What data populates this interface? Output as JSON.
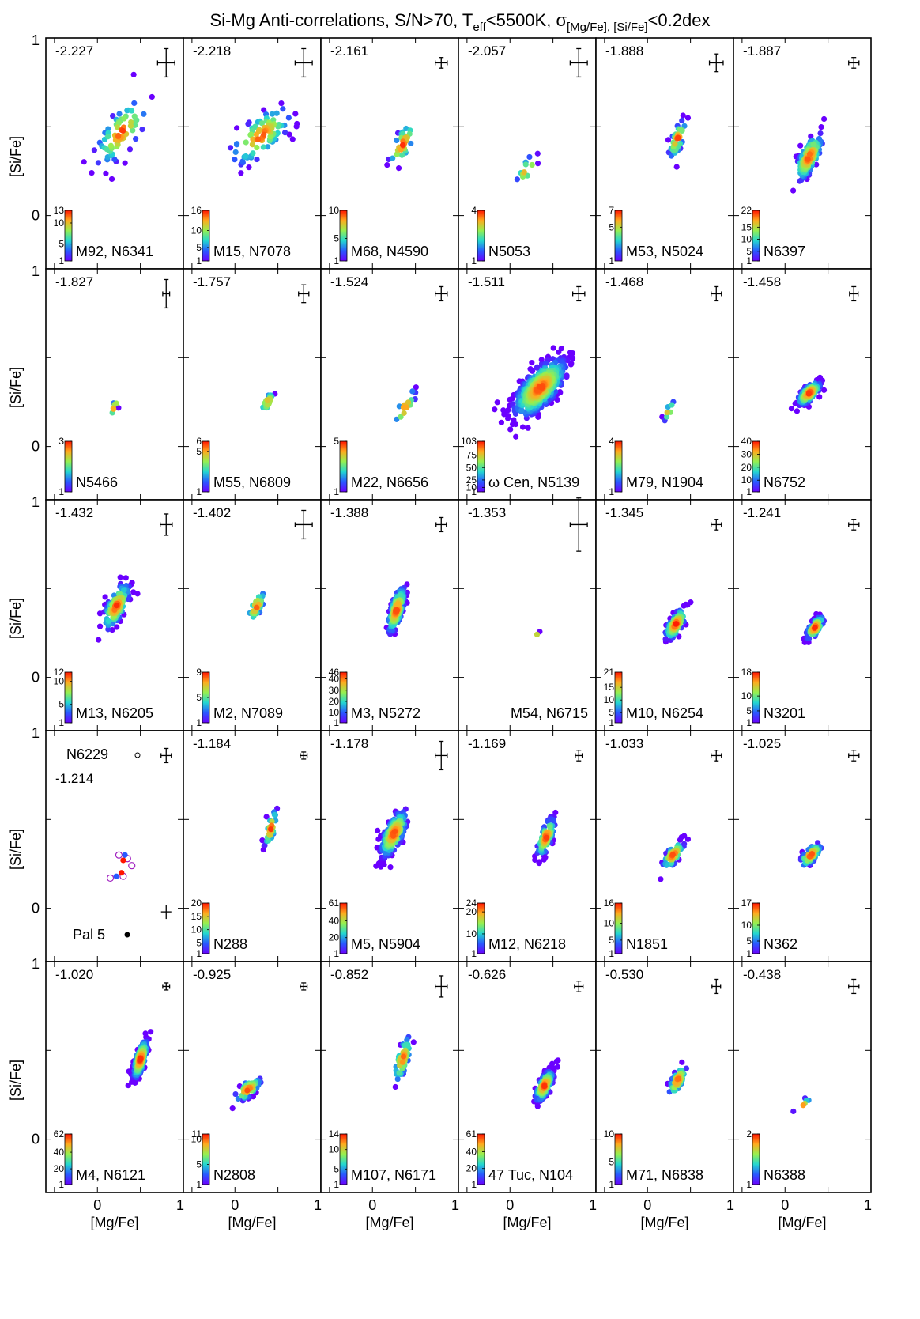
{
  "figure": {
    "title_main": "Si-Mg Anti-correlations, S/N>70, T",
    "title_sub1": "eff",
    "title_mid": "<5500K, σ",
    "title_sub2": "[Mg/Fe], [Si/Fe]",
    "title_end": "<0.2dex",
    "xlabel": "[Mg/Fe]",
    "ylabel": "[Si/Fe]"
  },
  "chart_data": {
    "type": "scatter",
    "layout": "6 columns x 5 rows of small-multiple panels",
    "xlim": [
      -0.6,
      1.0
    ],
    "ylim": [
      -0.3,
      1.0
    ],
    "x_ticks": [
      0,
      1
    ],
    "y_ticks": [
      0,
      1
    ],
    "colormap": "rainbow (violet = low density, red = high density)",
    "colors": {
      "low": "#6a00ff",
      "mid": "#24d7d0",
      "high": "#ff1a00"
    },
    "panels": [
      {
        "metallicity": "-2.227",
        "name": "M92, N6341",
        "cbar_ticks": [
          "13",
          "10",
          "5",
          "1"
        ],
        "cbar_max": 13,
        "center": [
          0.28,
          0.47
        ],
        "spread": [
          0.3,
          0.17
        ],
        "n": 70,
        "err": [
          0.1,
          0.08
        ],
        "seed": 11
      },
      {
        "metallicity": "-2.218",
        "name": "M15, N7078",
        "cbar_ticks": [
          "16",
          "10",
          "5",
          "1"
        ],
        "cbar_max": 16,
        "center": [
          0.3,
          0.45
        ],
        "spread": [
          0.35,
          0.15
        ],
        "n": 90,
        "err": [
          0.1,
          0.08
        ],
        "seed": 12
      },
      {
        "metallicity": "-2.161",
        "name": "M68, N4590",
        "cbar_ticks": [
          "10",
          "5",
          "1"
        ],
        "cbar_max": 10,
        "center": [
          0.35,
          0.4
        ],
        "spread": [
          0.15,
          0.12
        ],
        "n": 30,
        "err": [
          0.07,
          0.03
        ],
        "seed": 13
      },
      {
        "metallicity": "-2.057",
        "name": "N5053",
        "cbar_ticks": [
          "4",
          "1"
        ],
        "cbar_max": 4,
        "center": [
          0.2,
          0.26
        ],
        "spread": [
          0.12,
          0.08
        ],
        "n": 12,
        "err": [
          0.1,
          0.08
        ],
        "seed": 14
      },
      {
        "metallicity": "-1.888",
        "name": "M53, N5024",
        "cbar_ticks": [
          "7",
          "5",
          "1"
        ],
        "cbar_max": 7,
        "center": [
          0.35,
          0.43
        ],
        "spread": [
          0.1,
          0.1
        ],
        "n": 40,
        "err": [
          0.08,
          0.05
        ],
        "seed": 15
      },
      {
        "metallicity": "-1.887",
        "name": "N6397",
        "cbar_ticks": [
          "22",
          "15",
          "10",
          "5",
          "1"
        ],
        "cbar_max": 22,
        "center": [
          0.28,
          0.33
        ],
        "spread": [
          0.15,
          0.12
        ],
        "n": 140,
        "err": [
          0.06,
          0.03
        ],
        "seed": 16
      },
      {
        "metallicity": "-1.827",
        "name": "N5466",
        "cbar_ticks": [
          "3",
          "1"
        ],
        "cbar_max": 3,
        "center": [
          0.2,
          0.22
        ],
        "spread": [
          0.05,
          0.05
        ],
        "n": 7,
        "err": [
          0.04,
          0.08
        ],
        "seed": 17
      },
      {
        "metallicity": "-1.757",
        "name": "M55, N6809",
        "cbar_ticks": [
          "6",
          "5",
          "1"
        ],
        "cbar_max": 6,
        "center": [
          0.38,
          0.25
        ],
        "spread": [
          0.07,
          0.05
        ],
        "n": 25,
        "err": [
          0.06,
          0.05
        ],
        "seed": 18
      },
      {
        "metallicity": "-1.524",
        "name": "M22, N6656",
        "cbar_ticks": [
          "5",
          "1"
        ],
        "cbar_max": 5,
        "center": [
          0.38,
          0.22
        ],
        "spread": [
          0.12,
          0.1
        ],
        "n": 15,
        "err": [
          0.07,
          0.04
        ],
        "seed": 19
      },
      {
        "metallicity": "-1.511",
        "name": "ω Cen, N5139",
        "cbar_ticks": [
          "103",
          "75",
          "50",
          "25",
          "10",
          "1"
        ],
        "cbar_max": 103,
        "center": [
          0.35,
          0.33
        ],
        "spread": [
          0.3,
          0.15
        ],
        "n": 500,
        "err": [
          0.07,
          0.04
        ],
        "seed": 20
      },
      {
        "metallicity": "-1.468",
        "name": "M79, N1904",
        "cbar_ticks": [
          "4",
          "1"
        ],
        "cbar_max": 4,
        "center": [
          0.25,
          0.2
        ],
        "spread": [
          0.07,
          0.05
        ],
        "n": 8,
        "err": [
          0.06,
          0.04
        ],
        "seed": 21
      },
      {
        "metallicity": "-1.458",
        "name": "N6752",
        "cbar_ticks": [
          "40",
          "30",
          "20",
          "10",
          "1"
        ],
        "cbar_max": 40,
        "center": [
          0.28,
          0.3
        ],
        "spread": [
          0.13,
          0.06
        ],
        "n": 140,
        "err": [
          0.05,
          0.04
        ],
        "seed": 22
      },
      {
        "metallicity": "-1.432",
        "name": "M13, N6205",
        "cbar_ticks": [
          "12",
          "10",
          "5",
          "1"
        ],
        "cbar_max": 12,
        "center": [
          0.22,
          0.4
        ],
        "spread": [
          0.15,
          0.12
        ],
        "n": 120,
        "err": [
          0.07,
          0.06
        ],
        "seed": 23
      },
      {
        "metallicity": "-1.402",
        "name": "M2, N7089",
        "cbar_ticks": [
          "9",
          "5",
          "1"
        ],
        "cbar_max": 9,
        "center": [
          0.25,
          0.4
        ],
        "spread": [
          0.1,
          0.08
        ],
        "n": 30,
        "err": [
          0.1,
          0.08
        ],
        "seed": 24
      },
      {
        "metallicity": "-1.388",
        "name": "M3, N5272",
        "cbar_ticks": [
          "46",
          "40",
          "30",
          "20",
          "10",
          "1"
        ],
        "cbar_max": 46,
        "center": [
          0.28,
          0.38
        ],
        "spread": [
          0.1,
          0.12
        ],
        "n": 160,
        "err": [
          0.06,
          0.04
        ],
        "seed": 25
      },
      {
        "metallicity": "-1.353",
        "name": "M54, N6715",
        "cbar_ticks": [],
        "cbar_max": 0,
        "center": [
          0.3,
          0.23
        ],
        "spread": [
          0.04,
          0.04
        ],
        "n": 2,
        "err": [
          0.1,
          0.15
        ],
        "seed": 26
      },
      {
        "metallicity": "-1.345",
        "name": "M10, N6254",
        "cbar_ticks": [
          "21",
          "15",
          "10",
          "5",
          "1"
        ],
        "cbar_max": 21,
        "center": [
          0.33,
          0.3
        ],
        "spread": [
          0.12,
          0.08
        ],
        "n": 110,
        "err": [
          0.06,
          0.03
        ],
        "seed": 27
      },
      {
        "metallicity": "-1.241",
        "name": "N3201",
        "cbar_ticks": [
          "18",
          "10",
          "5",
          "1"
        ],
        "cbar_max": 18,
        "center": [
          0.35,
          0.28
        ],
        "spread": [
          0.1,
          0.06
        ],
        "n": 90,
        "err": [
          0.06,
          0.03
        ],
        "seed": 28
      },
      {
        "metallicity": "",
        "name": "",
        "cbar_ticks": [],
        "cbar_max": 0,
        "center": [
          0.3,
          0.3
        ],
        "spread": [
          0.05,
          0.05
        ],
        "n": 0,
        "err": [
          0.06,
          0.04
        ],
        "seed": 29,
        "special": "pal5"
      },
      {
        "metallicity": "-1.184",
        "name": "N288",
        "cbar_ticks": [
          "20",
          "15",
          "10",
          "5",
          "1"
        ],
        "cbar_max": 20,
        "center": [
          0.42,
          0.45
        ],
        "spread": [
          0.07,
          0.1
        ],
        "n": 30,
        "err": [
          0.04,
          0.02
        ],
        "seed": 30
      },
      {
        "metallicity": "-1.178",
        "name": "M5, N5904",
        "cbar_ticks": [
          "61",
          "40",
          "20",
          "1"
        ],
        "cbar_max": 61,
        "center": [
          0.25,
          0.42
        ],
        "spread": [
          0.15,
          0.12
        ],
        "n": 200,
        "err": [
          0.07,
          0.08
        ],
        "seed": 31
      },
      {
        "metallicity": "-1.169",
        "name": "M12, N6218",
        "cbar_ticks": [
          "24",
          "20",
          "10",
          "1"
        ],
        "cbar_max": 24,
        "center": [
          0.42,
          0.4
        ],
        "spread": [
          0.1,
          0.1
        ],
        "n": 90,
        "err": [
          0.04,
          0.03
        ],
        "seed": 32
      },
      {
        "metallicity": "-1.033",
        "name": "N1851",
        "cbar_ticks": [
          "16",
          "10",
          "5",
          "1"
        ],
        "cbar_max": 16,
        "center": [
          0.3,
          0.3
        ],
        "spread": [
          0.12,
          0.07
        ],
        "n": 60,
        "err": [
          0.06,
          0.03
        ],
        "seed": 33
      },
      {
        "metallicity": "-1.025",
        "name": "N362",
        "cbar_ticks": [
          "17",
          "10",
          "5",
          "1"
        ],
        "cbar_max": 17,
        "center": [
          0.3,
          0.3
        ],
        "spread": [
          0.12,
          0.06
        ],
        "n": 60,
        "err": [
          0.06,
          0.03
        ],
        "seed": 34
      },
      {
        "metallicity": "-1.020",
        "name": "M4, N6121",
        "cbar_ticks": [
          "62",
          "40",
          "20",
          "1"
        ],
        "cbar_max": 62,
        "center": [
          0.5,
          0.45
        ],
        "spread": [
          0.08,
          0.1
        ],
        "n": 220,
        "err": [
          0.04,
          0.02
        ],
        "seed": 35
      },
      {
        "metallicity": "-0.925",
        "name": "N2808",
        "cbar_ticks": [
          "11",
          "10",
          "5",
          "1"
        ],
        "cbar_max": 11,
        "center": [
          0.15,
          0.28
        ],
        "spread": [
          0.15,
          0.06
        ],
        "n": 60,
        "err": [
          0.04,
          0.02
        ],
        "seed": 36
      },
      {
        "metallicity": "-0.852",
        "name": "M107, N6171",
        "cbar_ticks": [
          "14",
          "10",
          "5",
          "1"
        ],
        "cbar_max": 14,
        "center": [
          0.35,
          0.45
        ],
        "spread": [
          0.1,
          0.12
        ],
        "n": 50,
        "err": [
          0.07,
          0.06
        ],
        "seed": 37
      },
      {
        "metallicity": "-0.626",
        "name": "47 Tuc, N104",
        "cbar_ticks": [
          "61",
          "40",
          "20",
          "1"
        ],
        "cbar_max": 61,
        "center": [
          0.4,
          0.3
        ],
        "spread": [
          0.1,
          0.08
        ],
        "n": 150,
        "err": [
          0.05,
          0.03
        ],
        "seed": 38
      },
      {
        "metallicity": "-0.530",
        "name": "M71, N6838",
        "cbar_ticks": [
          "10",
          "5",
          "1"
        ],
        "cbar_max": 10,
        "center": [
          0.35,
          0.33
        ],
        "spread": [
          0.1,
          0.08
        ],
        "n": 50,
        "err": [
          0.05,
          0.04
        ],
        "seed": 39
      },
      {
        "metallicity": "-0.438",
        "name": "N6388",
        "cbar_ticks": [
          "2",
          "1"
        ],
        "cbar_max": 2,
        "center": [
          0.2,
          0.18
        ],
        "spread": [
          0.1,
          0.05
        ],
        "n": 6,
        "err": [
          0.06,
          0.04
        ],
        "seed": 40
      }
    ],
    "pal5_panel": {
      "top_name": "N6229",
      "top_metallicity": "-1.214",
      "bottom_name": "Pal 5"
    }
  }
}
